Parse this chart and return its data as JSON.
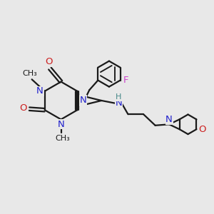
{
  "bg_color": "#e8e8e8",
  "bond_color": "#1a1a1a",
  "n_color": "#2020cc",
  "o_color": "#cc2020",
  "f_color": "#cc44cc",
  "h_color": "#448888",
  "figsize": [
    3.0,
    3.0
  ],
  "dpi": 100,
  "xlim": [
    0,
    10
  ],
  "ylim": [
    0,
    10
  ]
}
